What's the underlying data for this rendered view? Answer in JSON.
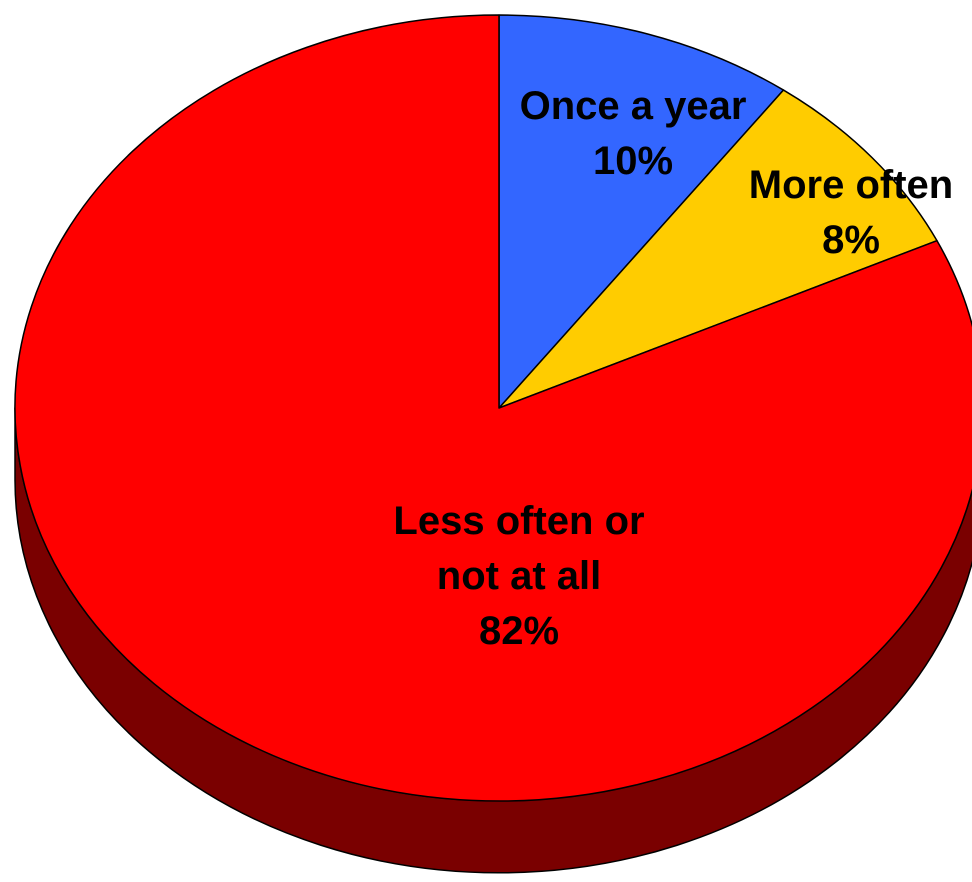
{
  "chart_data": {
    "type": "pie",
    "style": "3d",
    "slices": [
      {
        "category": "Once a year",
        "value": 10,
        "percent_label": "10%",
        "color": "#3366FF",
        "side_color": "#1a3380",
        "label_lines": [
          "Once a year",
          "10%"
        ]
      },
      {
        "category": "More often",
        "value": 8,
        "percent_label": "8%",
        "color": "#FFCC00",
        "side_color": "#806600",
        "label_lines": [
          "More often",
          "8%"
        ]
      },
      {
        "category": "Less often or not at all",
        "value": 82,
        "percent_label": "82%",
        "color": "#FF0000",
        "side_color": "#7A0000",
        "label_lines": [
          "Less often or",
          "not at all",
          "82%"
        ]
      }
    ],
    "start_angle": "12 o'clock",
    "direction": "clockwise",
    "legend": "none",
    "title": ""
  }
}
